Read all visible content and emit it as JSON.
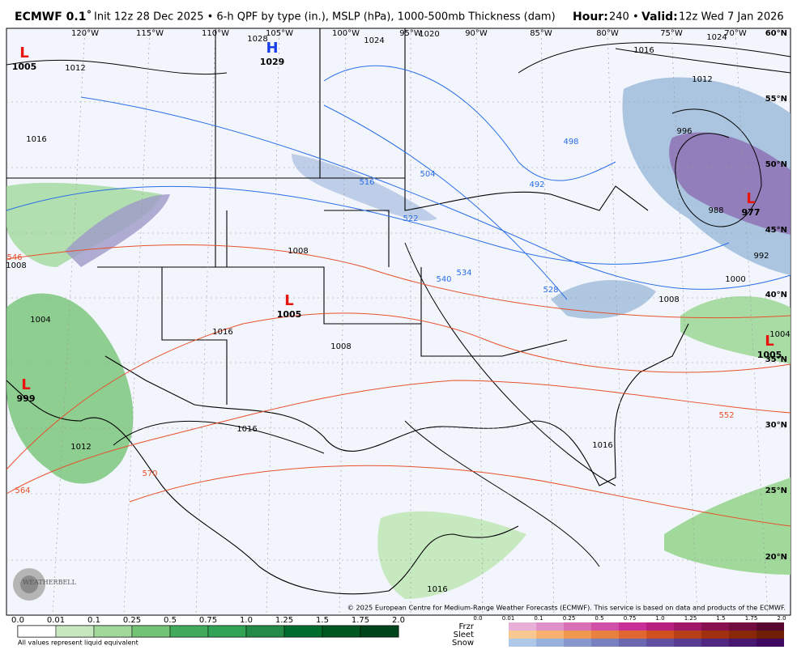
{
  "header": {
    "model": "ECMWF 0.1˚",
    "description": "Init 12z 28 Dec 2025 • 6-h QPF by type (in.), MSLP (hPa), 1000-500mb Thickness (dam)",
    "hour_label": "Hour:",
    "hour": "240 •",
    "valid_label": "Valid:",
    "valid": "12z Wed 7 Jan 2026"
  },
  "map": {
    "longitudes": [
      "120°W",
      "115°W",
      "110°W",
      "105°W",
      "100°W",
      "95°W",
      "90°W",
      "85°W",
      "80°W",
      "75°W",
      "70°W"
    ],
    "latitudes": [
      "60°N",
      "55°N",
      "50°N",
      "45°N",
      "40°N",
      "35°N",
      "30°N",
      "25°N",
      "20°N"
    ],
    "centers": [
      {
        "symbol": "L",
        "value": "1005"
      },
      {
        "symbol": "H",
        "value": "1029"
      },
      {
        "symbol": "L",
        "value": "1005"
      },
      {
        "symbol": "L",
        "value": "999"
      },
      {
        "symbol": "L",
        "value": "977"
      },
      {
        "symbol": "L",
        "value": "1005"
      }
    ],
    "isobar_labels": [
      "1012",
      "1016",
      "1028",
      "1024",
      "1020",
      "1024",
      "1016",
      "1012",
      "996",
      "988",
      "992",
      "1000",
      "1004",
      "1008",
      "1008",
      "1004",
      "1008",
      "1016",
      "1008",
      "1012",
      "1016",
      "1016",
      "1016"
    ],
    "thickness_labels_cold": [
      "516",
      "504",
      "492",
      "498",
      "522",
      "534",
      "540",
      "528"
    ],
    "thickness_labels_warm": [
      "546",
      "564",
      "570",
      "552"
    ],
    "logo": "WEATHERBELL",
    "copyright": "© 2025 European Centre for Medium-Range Weather Forecasts (ECMWF). This service is based on data and products of the ECMWF."
  },
  "legend": {
    "rain_ticks": [
      "0.0",
      "0.01",
      "0.1",
      "0.25",
      "0.5",
      "0.75",
      "1.0",
      "1.25",
      "1.5",
      "1.75",
      "2.0"
    ],
    "note": "All values represent liquid equivalent",
    "types": [
      "Frzr",
      "Sleet",
      "Snow"
    ],
    "mix_ticks": [
      "0.0",
      "0.01",
      "0.1",
      "0.25",
      "0.5",
      "0.75",
      "1.0",
      "1.25",
      "1.5",
      "1.75",
      "2.0"
    ]
  }
}
